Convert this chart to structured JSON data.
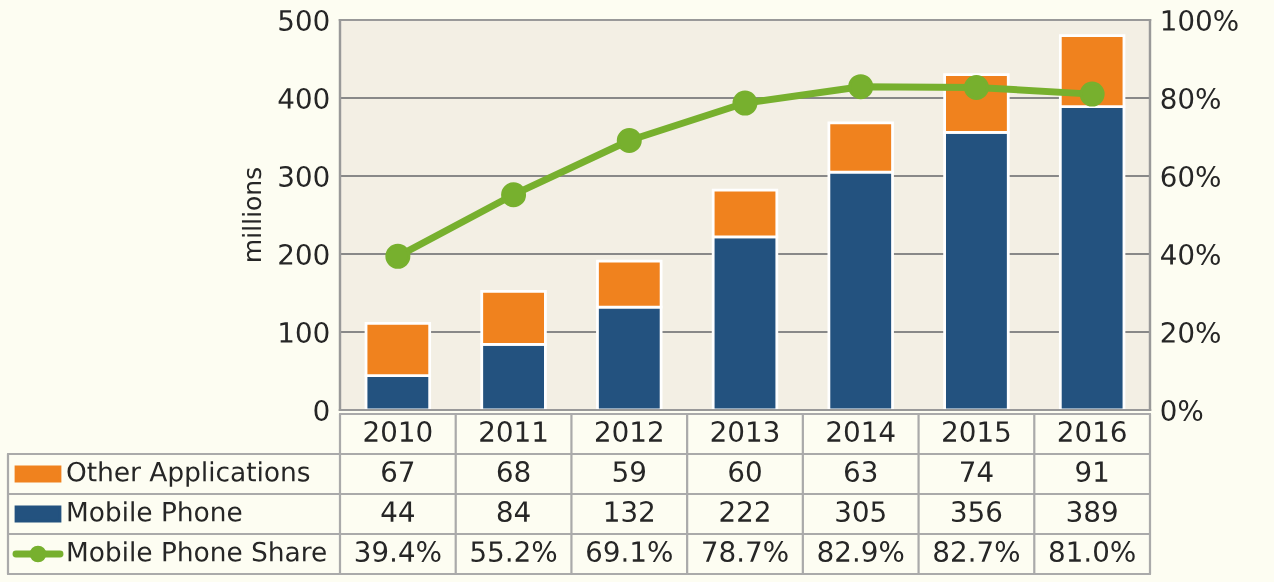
{
  "chart_data": {
    "type": "bar",
    "stacked": true,
    "ylabel": "millions",
    "categories": [
      "2010",
      "2011",
      "2012",
      "2013",
      "2014",
      "2015",
      "2016"
    ],
    "series": [
      {
        "name": "Mobile Phone",
        "color": "#23527f",
        "values": [
          44,
          84,
          132,
          222,
          305,
          356,
          389
        ],
        "value_labels": [
          "44",
          "84",
          "132",
          "222",
          "305",
          "356",
          "389"
        ]
      },
      {
        "name": "Other Applications",
        "color": "#f0821e",
        "values": [
          67,
          68,
          59,
          60,
          63,
          74,
          91
        ],
        "value_labels": [
          "67",
          "68",
          "59",
          "60",
          "63",
          "74",
          "91"
        ]
      },
      {
        "name": "Mobile Phone Share",
        "type": "line",
        "axis": "y2",
        "marker": "circle",
        "color": "#77b02e",
        "values": [
          39.4,
          55.2,
          69.1,
          78.7,
          82.9,
          82.7,
          81.0
        ],
        "value_labels": [
          "39.4%",
          "55.2%",
          "69.1%",
          "78.7%",
          "82.9%",
          "82.7%",
          "81.0%"
        ]
      }
    ],
    "ylim": [
      0,
      500
    ],
    "yticks": [
      0,
      100,
      200,
      300,
      400,
      500
    ],
    "y2lim": [
      0,
      100
    ],
    "y2ticks": [
      {
        "value": 0,
        "label": "0%"
      },
      {
        "value": 20,
        "label": "20%"
      },
      {
        "value": 40,
        "label": "40%"
      },
      {
        "value": 60,
        "label": "60%"
      },
      {
        "value": 80,
        "label": "80%"
      },
      {
        "value": 100,
        "label": "100%"
      }
    ],
    "grid": "y",
    "legend": "bottom"
  }
}
